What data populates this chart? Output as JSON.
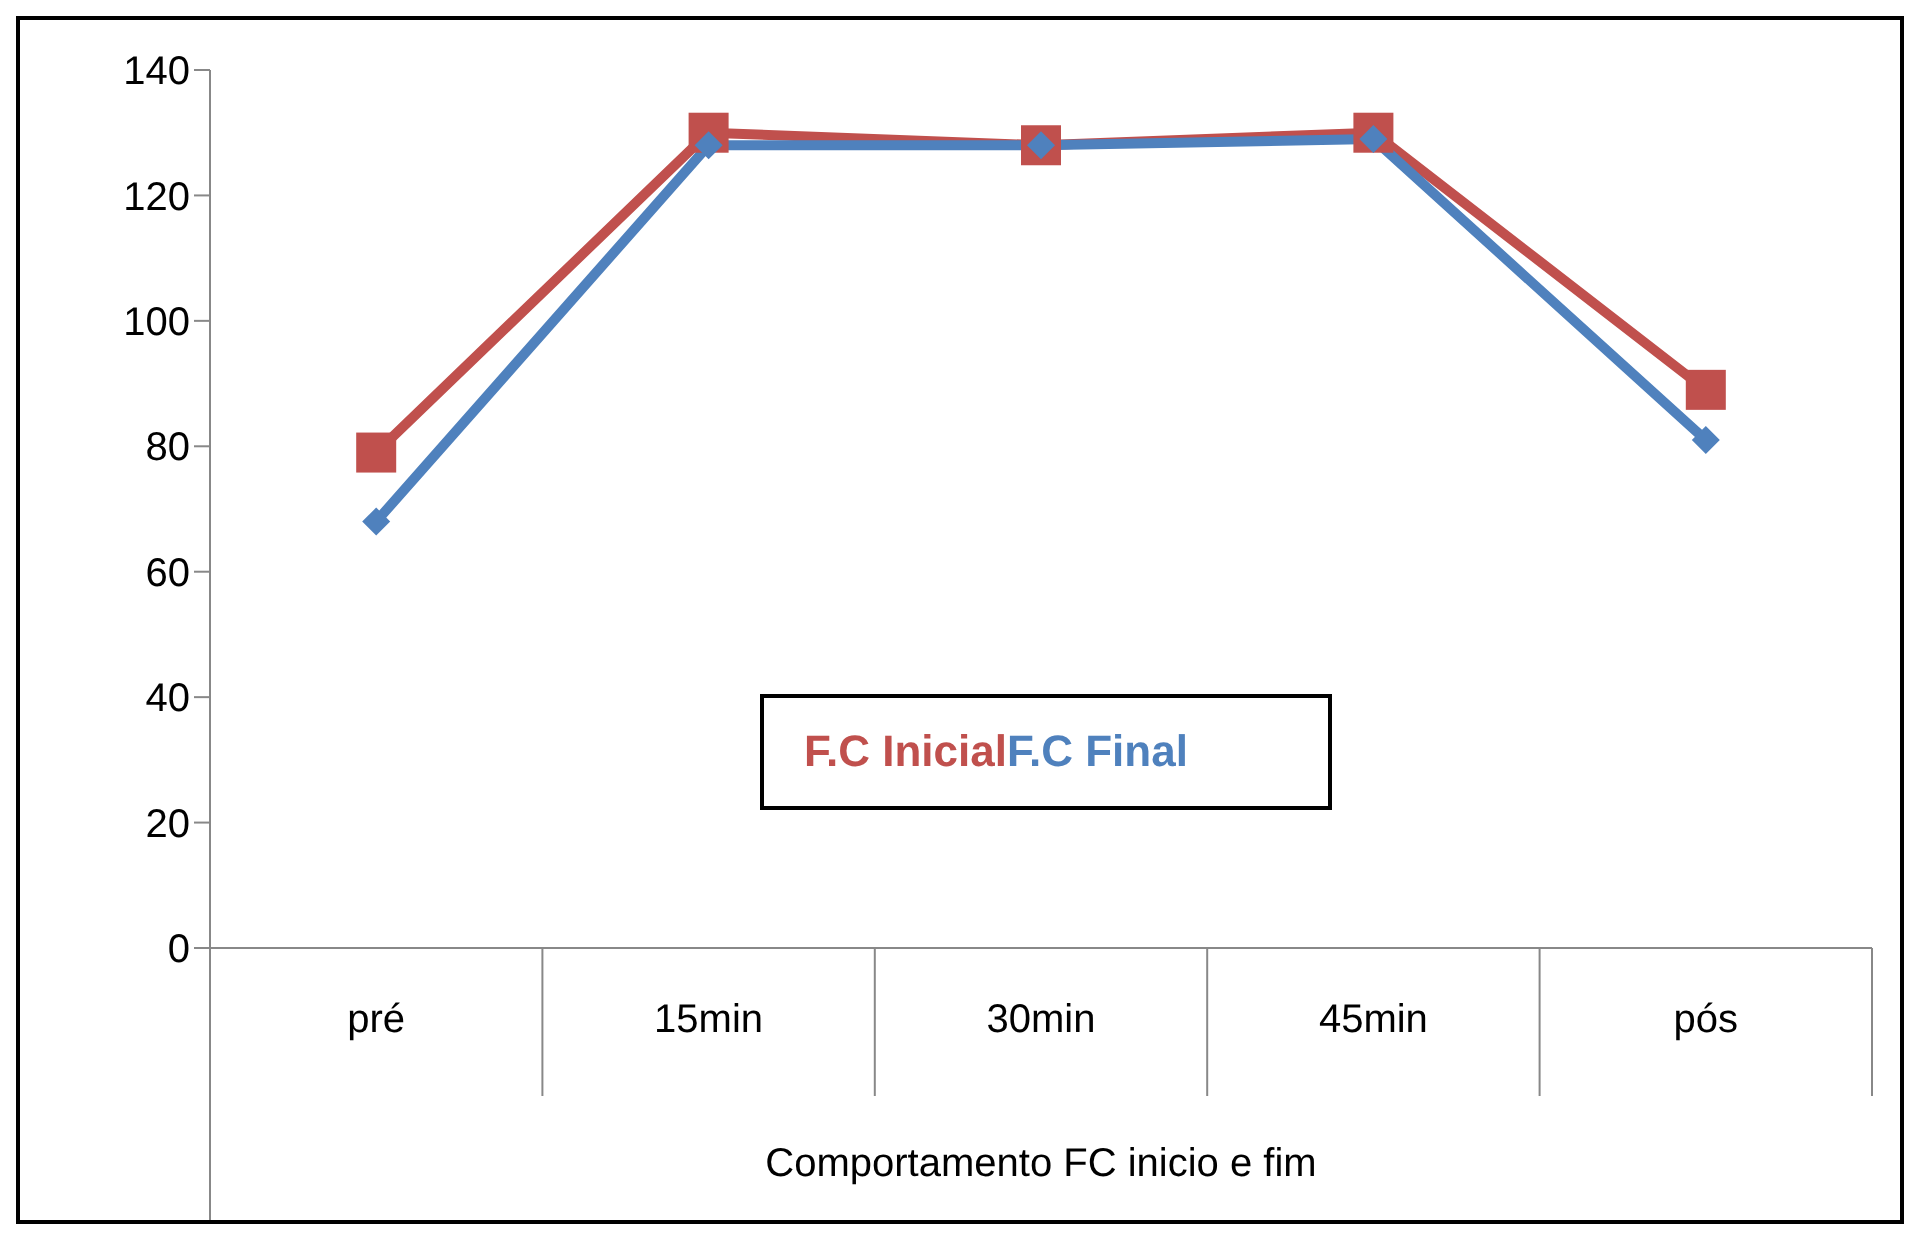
{
  "chart_data": {
    "type": "line",
    "xlabel": "Comportamento FC inicio e fim",
    "categories": [
      "pré",
      "15min",
      "30min",
      "45min",
      "pós"
    ],
    "series": [
      {
        "name": "F.C Inicial",
        "color": "#c0504d",
        "marker": "square",
        "values": [
          79,
          130,
          128,
          130,
          89
        ]
      },
      {
        "name": "F.C Final",
        "color": "#4f81bd",
        "marker": "diamond",
        "values": [
          68,
          128,
          128,
          129,
          81
        ]
      }
    ],
    "ylim": [
      0,
      140
    ],
    "yticks": [
      0,
      20,
      40,
      60,
      80,
      100,
      120,
      140
    ],
    "grid": false,
    "legend": "bottom",
    "line_style": "solid"
  }
}
